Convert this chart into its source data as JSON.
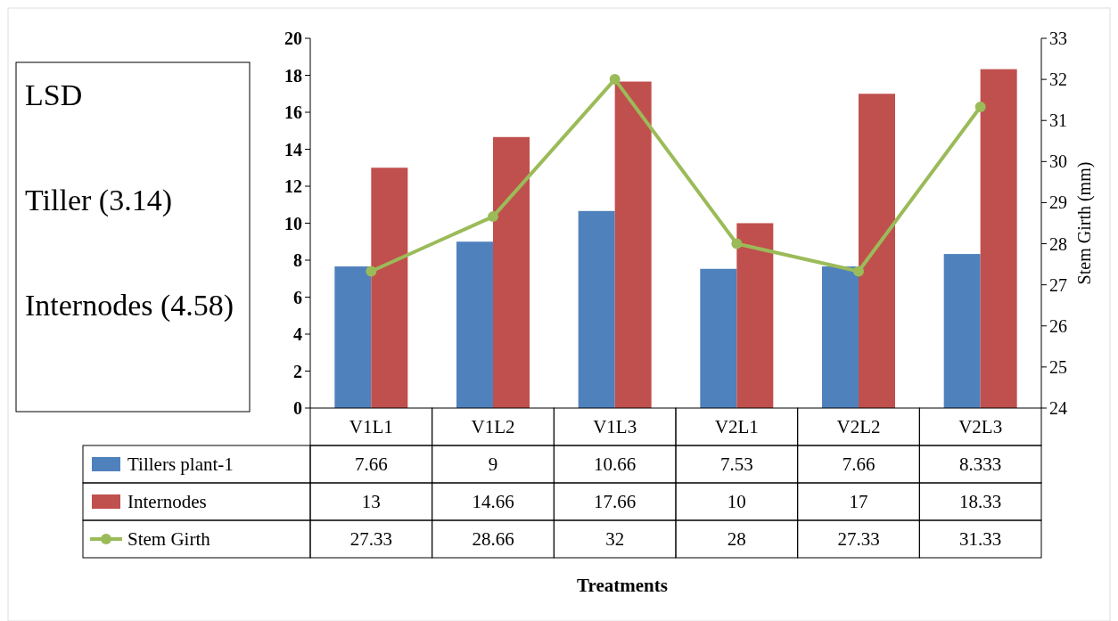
{
  "chart_data": {
    "type": "bar",
    "y2label": "Stem Girth (mm)",
    "categories": [
      "V1L1",
      "V1L2",
      "V1L3",
      "V2L1",
      "V2L2",
      "V2L3"
    ],
    "series": [
      {
        "name": "Tillers plant-1",
        "color": "#4f81bd",
        "values": [
          7.66,
          9,
          10.66,
          7.53,
          7.66,
          8.333
        ]
      },
      {
        "name": "Internodes",
        "color": "#c0504d",
        "values": [
          13,
          14.66,
          17.66,
          10,
          17,
          18.33
        ]
      },
      {
        "name": "Stem Girth",
        "color": "#9bbb59",
        "type": "line",
        "axis": "y2",
        "values": [
          27.33,
          28.66,
          32,
          28,
          27.33,
          31.33
        ]
      }
    ],
    "ylim": [
      0,
      20
    ],
    "yticks": [
      0,
      2,
      4,
      6,
      8,
      10,
      12,
      14,
      16,
      18,
      20
    ],
    "y2lim": [
      24,
      33
    ],
    "y2ticks": [
      24,
      25,
      26,
      27,
      28,
      29,
      30,
      31,
      32,
      33
    ],
    "annotations": [
      "LSD",
      "Tiller (3.14)",
      "Internodes (4.58)",
      "Treatments"
    ],
    "data_labels": true,
    "legend": "bottom",
    "marker": "circle",
    "grid": false
  }
}
